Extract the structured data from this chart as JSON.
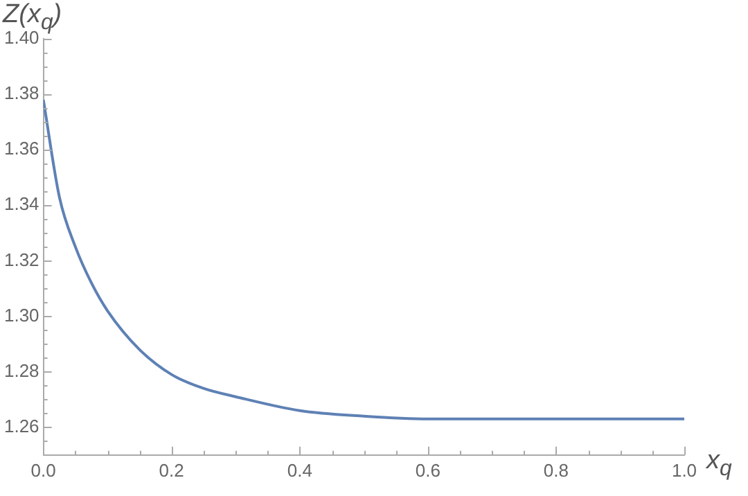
{
  "chart_data": {
    "type": "line",
    "xlabel": "x$_{q}$",
    "ylabel": "Z(x$_{q}$)",
    "x": [
      0,
      0.025,
      0.05,
      0.075,
      0.1,
      0.15,
      0.2,
      0.25,
      0.3,
      0.4,
      0.5,
      0.6,
      0.7,
      0.8,
      0.9,
      1.0
    ],
    "series": [
      {
        "color": "#5e81b5",
        "values": [
          1.378,
          1.343,
          1.325,
          1.312,
          1.302,
          1.288,
          1.279,
          1.274,
          1.271,
          1.266,
          1.264,
          1.263,
          1.263,
          1.263,
          1.263,
          1.263
        ]
      }
    ],
    "xlim": [
      0,
      1
    ],
    "ylim": [
      1.25,
      1.4
    ],
    "xticks": [
      {
        "value": 0,
        "label": "0.0"
      },
      {
        "value": 0.05,
        "label": null
      },
      {
        "value": 0.1,
        "label": null
      },
      {
        "value": 0.15,
        "label": null
      },
      {
        "value": 0.2,
        "label": "0.2"
      },
      {
        "value": 0.25,
        "label": null
      },
      {
        "value": 0.3,
        "label": null
      },
      {
        "value": 0.35,
        "label": null
      },
      {
        "value": 0.4,
        "label": "0.4"
      },
      {
        "value": 0.45,
        "label": null
      },
      {
        "value": 0.5,
        "label": null
      },
      {
        "value": 0.55,
        "label": null
      },
      {
        "value": 0.6,
        "label": "0.6"
      },
      {
        "value": 0.65,
        "label": null
      },
      {
        "value": 0.7,
        "label": null
      },
      {
        "value": 0.75,
        "label": null
      },
      {
        "value": 0.8,
        "label": "0.8"
      },
      {
        "value": 0.85,
        "label": null
      },
      {
        "value": 0.9,
        "label": null
      },
      {
        "value": 0.95,
        "label": null
      },
      {
        "value": 1,
        "label": "1.0"
      }
    ],
    "yticks": [
      {
        "value": 1.255,
        "label": null
      },
      {
        "value": 1.26,
        "label": "1.26"
      },
      {
        "value": 1.265,
        "label": null
      },
      {
        "value": 1.27,
        "label": null
      },
      {
        "value": 1.275,
        "label": null
      },
      {
        "value": 1.28,
        "label": "1.28"
      },
      {
        "value": 1.285,
        "label": null
      },
      {
        "value": 1.29,
        "label": null
      },
      {
        "value": 1.295,
        "label": null
      },
      {
        "value": 1.3,
        "label": "1.30"
      },
      {
        "value": 1.305,
        "label": null
      },
      {
        "value": 1.31,
        "label": null
      },
      {
        "value": 1.315,
        "label": null
      },
      {
        "value": 1.32,
        "label": "1.32"
      },
      {
        "value": 1.325,
        "label": null
      },
      {
        "value": 1.33,
        "label": null
      },
      {
        "value": 1.335,
        "label": null
      },
      {
        "value": 1.34,
        "label": "1.34"
      },
      {
        "value": 1.345,
        "label": null
      },
      {
        "value": 1.35,
        "label": null
      },
      {
        "value": 1.355,
        "label": null
      },
      {
        "value": 1.36,
        "label": "1.36"
      },
      {
        "value": 1.365,
        "label": null
      },
      {
        "value": 1.37,
        "label": null
      },
      {
        "value": 1.375,
        "label": null
      },
      {
        "value": 1.38,
        "label": "1.38"
      },
      {
        "value": 1.385,
        "label": null
      },
      {
        "value": 1.39,
        "label": null
      },
      {
        "value": 1.395,
        "label": null
      },
      {
        "value": 1.4,
        "label": "1.40"
      }
    ],
    "legend": false,
    "marker": "none",
    "line_style": "solid"
  }
}
